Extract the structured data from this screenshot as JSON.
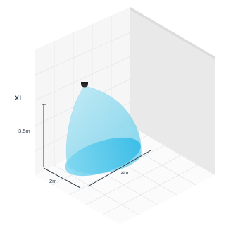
{
  "diagram": {
    "size_label": "XL",
    "height_label": "3,5m",
    "width_label": "2m",
    "depth_label": "4m",
    "colors": {
      "cone_fill": "#5ec9e8",
      "cone_base": "#32bce8",
      "wall": "#ececec",
      "grid_line": "#d2d8dc",
      "dimension_line": "#2f3e4c"
    }
  }
}
